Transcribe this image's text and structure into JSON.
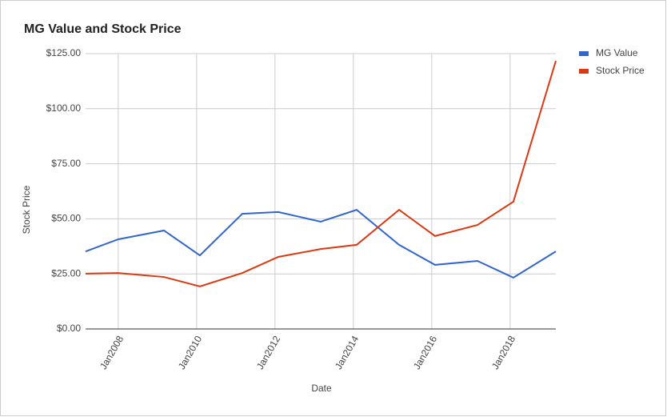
{
  "chart_data": {
    "type": "line",
    "title": "MG Value and Stock Price",
    "x_label": "Date",
    "y_label": "Stock Price",
    "x": [
      "2007-03",
      "2008-01",
      "2009-03",
      "2010-02",
      "2011-03",
      "2012-02",
      "2013-03",
      "2014-02",
      "2015-03",
      "2016-02",
      "2017-03",
      "2018-02",
      "2019-03"
    ],
    "series": [
      {
        "name": "MG Value",
        "color": "#3366cc",
        "values": [
          35.2,
          40.7,
          44.7,
          33.4,
          52.3,
          53.1,
          48.7,
          54.1,
          38.2,
          29.1,
          30.9,
          23.3,
          35.2
        ]
      },
      {
        "name": "Stock Price",
        "color": "#dc3912",
        "values": [
          25.1,
          25.4,
          23.6,
          19.3,
          25.4,
          32.7,
          36.3,
          38.2,
          54.1,
          42.2,
          47.2,
          57.8,
          121.7
        ]
      }
    ],
    "xlim": [
      "2007-03",
      "2019-03"
    ],
    "xticks": [
      {
        "value": "2008-01",
        "label": "Jan2008"
      },
      {
        "value": "2010-01",
        "label": "Jan2010"
      },
      {
        "value": "2012-01",
        "label": "Jan2012"
      },
      {
        "value": "2014-01",
        "label": "Jan2014"
      },
      {
        "value": "2016-01",
        "label": "Jan2016"
      },
      {
        "value": "2018-01",
        "label": "Jan2018"
      }
    ],
    "ylim": [
      0,
      125
    ],
    "yticks": [
      {
        "value": 0,
        "label": "$0.00"
      },
      {
        "value": 25,
        "label": "$25.00"
      },
      {
        "value": 50,
        "label": "$50.00"
      },
      {
        "value": 75,
        "label": "$75.00"
      },
      {
        "value": 100,
        "label": "$100.00"
      },
      {
        "value": 125,
        "label": "$125.00"
      }
    ],
    "grid": true,
    "legend": "right"
  }
}
